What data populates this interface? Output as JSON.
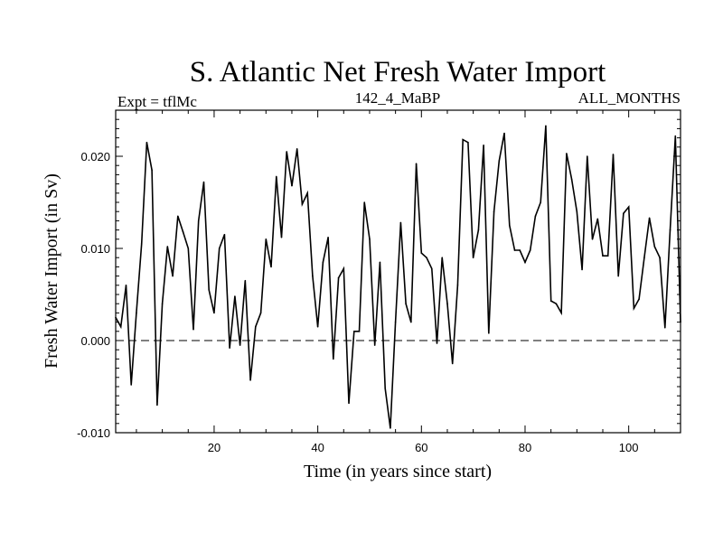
{
  "chart_data": {
    "type": "line",
    "title": "S. Atlantic Net Fresh Water Import",
    "subtitle_left": "Expt = tflMc",
    "subtitle_center": "142_4_MaBP",
    "subtitle_right": "ALL_MONTHS",
    "xlabel": "Time (in years since start)",
    "ylabel": "Fresh Water Import (in Sv)",
    "xlim": [
      1,
      110
    ],
    "ylim": [
      -0.01,
      0.025
    ],
    "xticks": [
      20,
      40,
      60,
      80,
      100
    ],
    "xtick_labels": [
      "20",
      "40",
      "60",
      "80",
      "100"
    ],
    "yticks": [
      -0.01,
      0.0,
      0.01,
      0.02
    ],
    "ytick_labels": [
      "-0.010",
      "0.000",
      "0.010",
      "0.020"
    ],
    "reference_line": {
      "y": 0.0,
      "style": "dashed"
    },
    "grid": false,
    "series": [
      {
        "name": "Net Fresh Water Import",
        "x": [
          1,
          2,
          3,
          4,
          5,
          6,
          7,
          8,
          9,
          10,
          11,
          12,
          13,
          14,
          15,
          16,
          17,
          18,
          19,
          20,
          21,
          22,
          23,
          24,
          25,
          26,
          27,
          28,
          29,
          30,
          31,
          32,
          33,
          34,
          35,
          36,
          37,
          38,
          39,
          40,
          41,
          42,
          43,
          44,
          45,
          46,
          47,
          48,
          49,
          50,
          51,
          52,
          53,
          54,
          55,
          56,
          57,
          58,
          59,
          60,
          61,
          62,
          63,
          64,
          65,
          66,
          67,
          68,
          69,
          70,
          71,
          72,
          73,
          74,
          75,
          76,
          77,
          78,
          79,
          80,
          81,
          82,
          83,
          84,
          85,
          86,
          87,
          88,
          89,
          90,
          91,
          92,
          93,
          94,
          95,
          96,
          97,
          98,
          99,
          100,
          101,
          102,
          103,
          104,
          105,
          106,
          107,
          108,
          109,
          110
        ],
        "y": [
          0.0025,
          0.0015,
          0.006,
          -0.0048,
          0.003,
          0.0105,
          0.0215,
          0.0185,
          -0.007,
          0.004,
          0.0102,
          0.007,
          0.0135,
          0.0118,
          0.01,
          0.0012,
          0.013,
          0.0172,
          0.0055,
          0.003,
          0.01,
          0.0115,
          -0.0008,
          0.0048,
          -0.0005,
          0.0065,
          -0.0043,
          0.0015,
          0.003,
          0.011,
          0.008,
          0.0178,
          0.0112,
          0.0205,
          0.0168,
          0.0208,
          0.0148,
          0.016,
          0.007,
          0.0015,
          0.0085,
          0.0112,
          -0.002,
          0.0068,
          0.0078,
          -0.0068,
          0.001,
          0.001,
          0.015,
          0.011,
          -0.0005,
          0.0085,
          -0.0052,
          -0.0095,
          0.002,
          0.0128,
          0.004,
          0.002,
          0.0192,
          0.0095,
          0.009,
          0.0078,
          -0.0003,
          0.009,
          0.004,
          -0.0025,
          0.006,
          0.0218,
          0.0215,
          0.009,
          0.012,
          0.0212,
          0.0008,
          0.014,
          0.0195,
          0.0225,
          0.0125,
          0.0098,
          0.0098,
          0.0085,
          0.0098,
          0.0135,
          0.015,
          0.0233,
          0.0043,
          0.004,
          0.003,
          0.0203,
          0.0175,
          0.014,
          0.0077,
          0.02,
          0.011,
          0.0132,
          0.0092,
          0.0092,
          0.0202,
          0.007,
          0.0138,
          0.0145,
          0.0035,
          0.0045,
          0.009,
          0.0133,
          0.0102,
          0.009,
          0.0014,
          0.012,
          0.0222,
          0.002
        ]
      }
    ]
  }
}
